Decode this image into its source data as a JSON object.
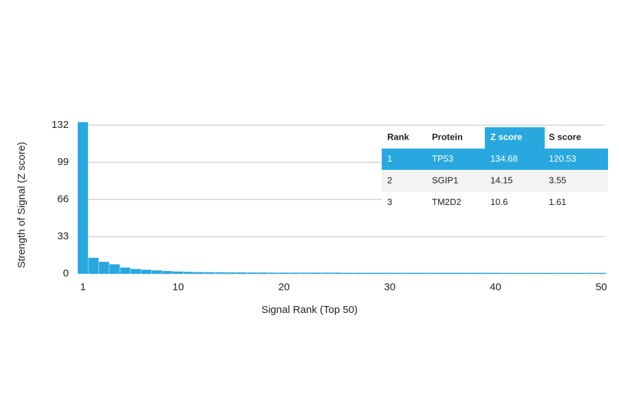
{
  "chart_data": {
    "type": "bar",
    "x_label": "Signal Rank (Top 50)",
    "y_label": "Strength of Signal (Z score)",
    "x": [
      1,
      2,
      3,
      4,
      5,
      6,
      7,
      8,
      9,
      10,
      11,
      12,
      13,
      14,
      15,
      16,
      17,
      18,
      19,
      20,
      21,
      22,
      23,
      24,
      25,
      26,
      27,
      28,
      29,
      30,
      31,
      32,
      33,
      34,
      35,
      36,
      37,
      38,
      39,
      40,
      41,
      42,
      43,
      44,
      45,
      46,
      47,
      48,
      49,
      50
    ],
    "values": [
      134.68,
      14.15,
      10.6,
      8.4,
      5.5,
      4.2,
      3.6,
      3.0,
      2.4,
      2.0,
      1.7,
      1.5,
      1.4,
      1.3,
      1.2,
      1.2,
      1.1,
      1.1,
      1.0,
      1.0,
      1.0,
      1.0,
      1.0,
      1.0,
      1.0,
      0.9,
      0.9,
      0.9,
      0.9,
      0.9,
      0.9,
      0.9,
      0.9,
      0.9,
      0.9,
      0.9,
      0.9,
      0.9,
      0.9,
      0.9,
      0.8,
      0.8,
      0.8,
      0.8,
      0.8,
      0.8,
      0.8,
      0.8,
      0.8,
      0.8
    ],
    "color": "#29a8e0",
    "xlim": [
      0.5,
      50.5
    ],
    "xticks": [
      1,
      10,
      20,
      30,
      40,
      50
    ],
    "ylim": [
      0,
      132
    ],
    "yticks": [
      0,
      33,
      66,
      99,
      132
    ],
    "grid": true,
    "table": {
      "columns": [
        "Rank",
        "Protein",
        "Z score",
        "S score"
      ],
      "rows": [
        [
          1,
          "TP53",
          134.68,
          120.53
        ],
        [
          2,
          "SGIP1",
          14.15,
          3.55
        ],
        [
          3,
          "TM2D2",
          10.6,
          1.61
        ]
      ]
    }
  }
}
